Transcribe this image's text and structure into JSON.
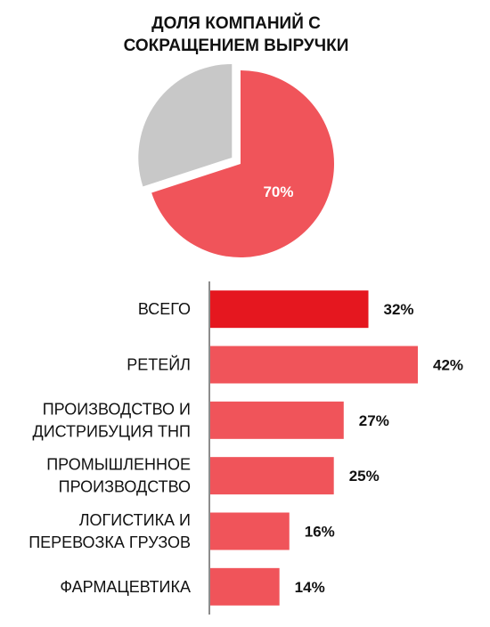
{
  "chart_data": [
    {
      "type": "pie",
      "title_line1": "ДОЛЯ КОМПАНИЙ С",
      "title_line2": "СОКРАЩЕНИЕМ ВЫРУЧКИ",
      "slices": [
        {
          "value": 70,
          "label": "70%",
          "color": "#f0545a",
          "exploded": false
        },
        {
          "value": 30,
          "label": "",
          "color": "#c8c8c8",
          "exploded": true
        }
      ]
    },
    {
      "type": "bar",
      "orientation": "horizontal",
      "categories": [
        [
          "ВСЕГО"
        ],
        [
          "РЕТЕЙЛ"
        ],
        [
          "ПРОИЗВОДСТВО И",
          "ДИСТРИБУЦИЯ ТНП"
        ],
        [
          "ПРОМЫШЛЕННОЕ",
          "ПРОИЗВОДСТВО"
        ],
        [
          "ЛОГИСТИКА И",
          "ПЕРЕВОЗКА ГРУЗОВ"
        ],
        [
          "ФАРМАЦЕВТИКА"
        ]
      ],
      "values": [
        32,
        42,
        27,
        25,
        16,
        14
      ],
      "value_labels": [
        "32%",
        "42%",
        "27%",
        "25%",
        "16%",
        "14%"
      ],
      "colors": [
        "#e5171f",
        "#f0545a",
        "#f0545a",
        "#f0545a",
        "#f0545a",
        "#f0545a"
      ],
      "xlim": [
        0,
        42
      ]
    }
  ]
}
